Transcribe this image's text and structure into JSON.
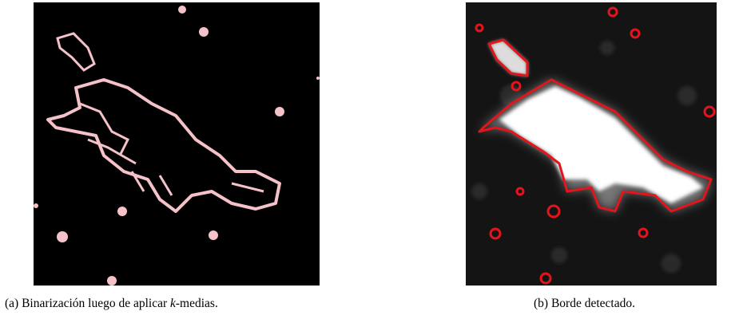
{
  "figures": [
    {
      "label": "(a)",
      "caption_before": "Binarización luego de aplicar",
      "caption_italic": "k",
      "caption_after": "-medias."
    },
    {
      "label": "(b)",
      "caption": "Borde detectado."
    }
  ]
}
